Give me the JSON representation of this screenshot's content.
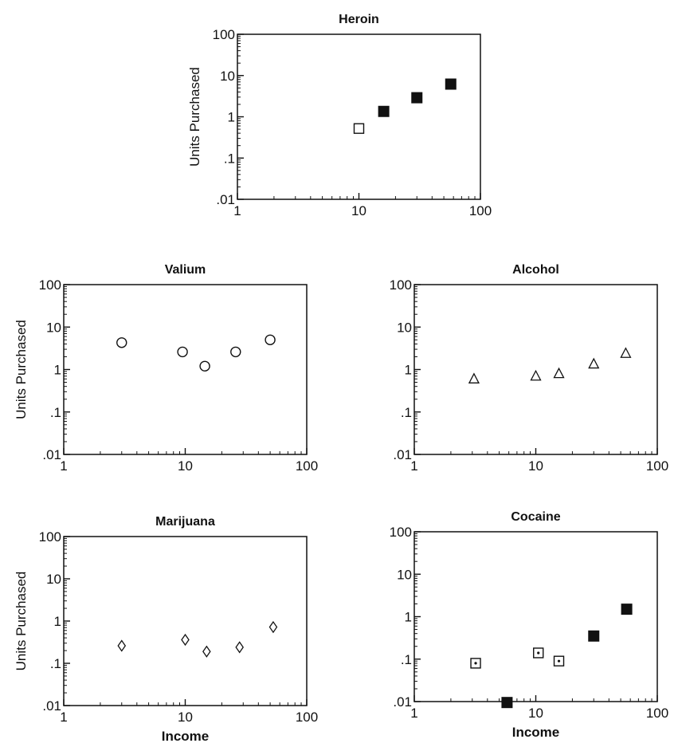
{
  "chart_data": [
    {
      "type": "scatter",
      "title": "Heroin",
      "ylabel": "Units Purchased",
      "xlabel": "",
      "xscale": "log",
      "yscale": "log",
      "xlim": [
        1,
        100
      ],
      "ylim": [
        0.01,
        100
      ],
      "xticks": [
        "1",
        "10",
        "100"
      ],
      "yticks": [
        "100",
        "10",
        "1",
        ".1",
        ".01"
      ],
      "series": [
        {
          "marker": "open-square",
          "points": [
            [
              10,
              0.52
            ]
          ]
        },
        {
          "marker": "filled-square",
          "points": [
            [
              16,
              1.35
            ],
            [
              30,
              2.9
            ],
            [
              57,
              6.2
            ]
          ]
        }
      ]
    },
    {
      "type": "scatter",
      "title": "Valium",
      "ylabel": "Units Purchased",
      "xlabel": "",
      "xscale": "log",
      "yscale": "log",
      "xlim": [
        1,
        100
      ],
      "ylim": [
        0.01,
        100
      ],
      "xticks": [
        "1",
        "10",
        "100"
      ],
      "yticks": [
        "100",
        "10",
        "1",
        ".1",
        ".01"
      ],
      "series": [
        {
          "marker": "open-circle",
          "points": [
            [
              3,
              4.3
            ],
            [
              9.5,
              2.6
            ],
            [
              14.5,
              1.2
            ],
            [
              26,
              2.6
            ],
            [
              50,
              5.0
            ]
          ]
        }
      ]
    },
    {
      "type": "scatter",
      "title": "Alcohol",
      "ylabel": "",
      "xlabel": "",
      "xscale": "log",
      "yscale": "log",
      "xlim": [
        1,
        100
      ],
      "ylim": [
        0.01,
        100
      ],
      "xticks": [
        "1",
        "10",
        "100"
      ],
      "yticks": [
        "100",
        "10",
        "1",
        ".1",
        ".01"
      ],
      "series": [
        {
          "marker": "open-triangle",
          "points": [
            [
              3.1,
              0.6
            ],
            [
              10,
              0.7
            ],
            [
              15.5,
              0.8
            ],
            [
              30,
              1.35
            ],
            [
              55,
              2.4
            ]
          ]
        }
      ]
    },
    {
      "type": "scatter",
      "title": "Marijuana",
      "ylabel": "Units Purchased",
      "xlabel": "Income",
      "xscale": "log",
      "yscale": "log",
      "xlim": [
        1,
        100
      ],
      "ylim": [
        0.01,
        100
      ],
      "xticks": [
        "1",
        "10",
        "100"
      ],
      "yticks": [
        "100",
        "10",
        "1",
        ".1",
        ".01"
      ],
      "series": [
        {
          "marker": "open-diamond",
          "points": [
            [
              3,
              0.26
            ],
            [
              10,
              0.36
            ],
            [
              15,
              0.19
            ],
            [
              28,
              0.24
            ],
            [
              53,
              0.72
            ]
          ]
        }
      ]
    },
    {
      "type": "scatter",
      "title": "Cocaine",
      "ylabel": "",
      "xlabel": "Income",
      "xscale": "log",
      "yscale": "log",
      "xlim": [
        1,
        100
      ],
      "ylim": [
        0.01,
        100
      ],
      "xticks": [
        "1",
        "10",
        "100"
      ],
      "yticks": [
        "100",
        "10",
        "1",
        ".1",
        ".01"
      ],
      "series": [
        {
          "marker": "dotted-square",
          "points": [
            [
              3.2,
              0.08
            ],
            [
              10.5,
              0.14
            ],
            [
              15.5,
              0.09
            ]
          ]
        },
        {
          "marker": "filled-square",
          "points": [
            [
              5.8,
              0.0095
            ],
            [
              30,
              0.35
            ],
            [
              56,
              1.5
            ]
          ]
        }
      ]
    }
  ]
}
